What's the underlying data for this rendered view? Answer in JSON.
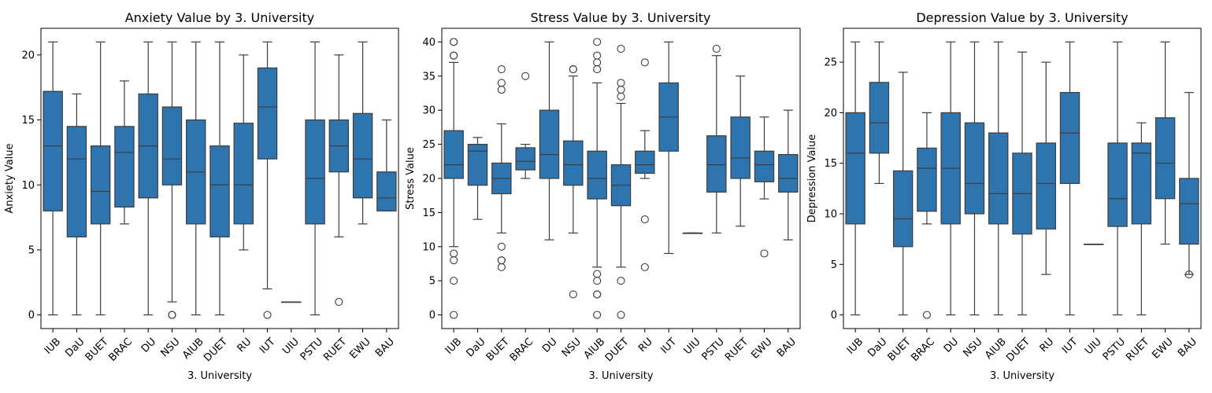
{
  "chart_data": [
    {
      "type": "box",
      "title": "Anxiety Value by 3. University",
      "xlabel": "3. University",
      "ylabel": "Anxiety Value",
      "ylim": [
        -1.05,
        22.05
      ],
      "yticks": [
        0,
        5,
        10,
        15,
        20
      ],
      "categories": [
        "IUB",
        "DaU",
        "BUET",
        "BRAC",
        "DU",
        "NSU",
        "AIUB",
        "DUET",
        "RU",
        "IUT",
        "UIU",
        "PSTU",
        "RUET",
        "EWU",
        "BAU"
      ],
      "boxes": [
        {
          "whisker_low": 0,
          "q1": 8,
          "median": 13,
          "q3": 17.2,
          "whisker_high": 21,
          "outliers": []
        },
        {
          "whisker_low": 0,
          "q1": 6,
          "median": 12,
          "q3": 14.5,
          "whisker_high": 17,
          "outliers": []
        },
        {
          "whisker_low": 0,
          "q1": 7,
          "median": 9.5,
          "q3": 13,
          "whisker_high": 21,
          "outliers": []
        },
        {
          "whisker_low": 7,
          "q1": 8.3,
          "median": 12.5,
          "q3": 14.5,
          "whisker_high": 18,
          "outliers": []
        },
        {
          "whisker_low": 0,
          "q1": 9,
          "median": 13,
          "q3": 17,
          "whisker_high": 21,
          "outliers": []
        },
        {
          "whisker_low": 1,
          "q1": 10,
          "median": 12,
          "q3": 16,
          "whisker_high": 21,
          "outliers": [
            0,
            0
          ]
        },
        {
          "whisker_low": 0,
          "q1": 7,
          "median": 11,
          "q3": 15,
          "whisker_high": 21,
          "outliers": []
        },
        {
          "whisker_low": 0,
          "q1": 6,
          "median": 10,
          "q3": 13,
          "whisker_high": 21,
          "outliers": []
        },
        {
          "whisker_low": 5,
          "q1": 7,
          "median": 10,
          "q3": 14.75,
          "whisker_high": 20,
          "outliers": []
        },
        {
          "whisker_low": 2,
          "q1": 12,
          "median": 16,
          "q3": 19,
          "whisker_high": 21,
          "outliers": [
            0
          ]
        },
        {
          "whisker_low": 1,
          "q1": 1,
          "median": 1,
          "q3": 1,
          "whisker_high": 1,
          "outliers": []
        },
        {
          "whisker_low": 0,
          "q1": 7,
          "median": 10.5,
          "q3": 15,
          "whisker_high": 21,
          "outliers": []
        },
        {
          "whisker_low": 6,
          "q1": 11,
          "median": 13,
          "q3": 15,
          "whisker_high": 20,
          "outliers": [
            1
          ]
        },
        {
          "whisker_low": 7,
          "q1": 9,
          "median": 12,
          "q3": 15.5,
          "whisker_high": 21,
          "outliers": []
        },
        {
          "whisker_low": 8,
          "q1": 8,
          "median": 9,
          "q3": 11,
          "whisker_high": 15,
          "outliers": []
        }
      ]
    },
    {
      "type": "box",
      "title": "Stress Value by 3. University",
      "xlabel": "3. University",
      "ylabel": "Stress Value",
      "ylim": [
        -2,
        42
      ],
      "yticks": [
        0,
        5,
        10,
        15,
        20,
        25,
        30,
        35,
        40
      ],
      "categories": [
        "IUB",
        "DaU",
        "BUET",
        "BRAC",
        "DU",
        "NSU",
        "AIUB",
        "DUET",
        "RU",
        "IUT",
        "UIU",
        "PSTU",
        "RUET",
        "EWU",
        "BAU"
      ],
      "boxes": [
        {
          "whisker_low": 10,
          "q1": 20,
          "median": 22,
          "q3": 27,
          "whisker_high": 37,
          "outliers": [
            38,
            38,
            40,
            40,
            9,
            8,
            5,
            0
          ]
        },
        {
          "whisker_low": 14,
          "q1": 19,
          "median": 24,
          "q3": 25,
          "whisker_high": 26,
          "outliers": []
        },
        {
          "whisker_low": 12,
          "q1": 17.75,
          "median": 20,
          "q3": 22.25,
          "whisker_high": 28,
          "outliers": [
            36,
            34,
            33,
            10,
            8,
            8,
            7
          ]
        },
        {
          "whisker_low": 20,
          "q1": 21.25,
          "median": 22.5,
          "q3": 24.5,
          "whisker_high": 25,
          "outliers": [
            35
          ]
        },
        {
          "whisker_low": 11,
          "q1": 20,
          "median": 23.5,
          "q3": 30,
          "whisker_high": 40,
          "outliers": []
        },
        {
          "whisker_low": 12,
          "q1": 19,
          "median": 22,
          "q3": 25.5,
          "whisker_high": 35,
          "outliers": [
            36,
            36,
            3
          ]
        },
        {
          "whisker_low": 7,
          "q1": 17,
          "median": 20,
          "q3": 24,
          "whisker_high": 34,
          "outliers": [
            40,
            38,
            37,
            36,
            6,
            5,
            3,
            3,
            0
          ]
        },
        {
          "whisker_low": 7,
          "q1": 16,
          "median": 19,
          "q3": 22,
          "whisker_high": 31,
          "outliers": [
            39,
            34,
            33,
            32,
            5,
            0
          ]
        },
        {
          "whisker_low": 20,
          "q1": 20.75,
          "median": 22,
          "q3": 24,
          "whisker_high": 27,
          "outliers": [
            37,
            14,
            7
          ]
        },
        {
          "whisker_low": 9,
          "q1": 24,
          "median": 29,
          "q3": 34,
          "whisker_high": 40,
          "outliers": []
        },
        {
          "whisker_low": 12,
          "q1": 12,
          "median": 12,
          "q3": 12,
          "whisker_high": 12,
          "outliers": []
        },
        {
          "whisker_low": 12,
          "q1": 18,
          "median": 22,
          "q3": 26.25,
          "whisker_high": 38,
          "outliers": [
            39
          ]
        },
        {
          "whisker_low": 13,
          "q1": 20,
          "median": 23,
          "q3": 29,
          "whisker_high": 35,
          "outliers": []
        },
        {
          "whisker_low": 17,
          "q1": 19.5,
          "median": 22,
          "q3": 24,
          "whisker_high": 29,
          "outliers": [
            9
          ]
        },
        {
          "whisker_low": 11,
          "q1": 18,
          "median": 20,
          "q3": 23.5,
          "whisker_high": 30,
          "outliers": []
        }
      ]
    },
    {
      "type": "box",
      "title": "Depression Value by 3. University",
      "xlabel": "3. University",
      "ylabel": "Depression Value",
      "ylim": [
        -1.35,
        28.35
      ],
      "yticks": [
        0,
        5,
        10,
        15,
        20,
        25
      ],
      "categories": [
        "IUB",
        "DaU",
        "BUET",
        "BRAC",
        "DU",
        "NSU",
        "AIUB",
        "DUET",
        "RU",
        "IUT",
        "UIU",
        "PSTU",
        "RUET",
        "EWU",
        "BAU"
      ],
      "boxes": [
        {
          "whisker_low": 0,
          "q1": 9,
          "median": 16,
          "q3": 20,
          "whisker_high": 27,
          "outliers": []
        },
        {
          "whisker_low": 13,
          "q1": 16,
          "median": 19,
          "q3": 23,
          "whisker_high": 27,
          "outliers": []
        },
        {
          "whisker_low": 0,
          "q1": 6.75,
          "median": 9.5,
          "q3": 14.25,
          "whisker_high": 24,
          "outliers": []
        },
        {
          "whisker_low": 9,
          "q1": 10.25,
          "median": 14.5,
          "q3": 16.5,
          "whisker_high": 20,
          "outliers": [
            0
          ]
        },
        {
          "whisker_low": 0,
          "q1": 9,
          "median": 14.5,
          "q3": 20,
          "whisker_high": 27,
          "outliers": []
        },
        {
          "whisker_low": 0,
          "q1": 10,
          "median": 13,
          "q3": 19,
          "whisker_high": 27,
          "outliers": []
        },
        {
          "whisker_low": 0,
          "q1": 9,
          "median": 12,
          "q3": 18,
          "whisker_high": 27,
          "outliers": []
        },
        {
          "whisker_low": 0,
          "q1": 8,
          "median": 12,
          "q3": 16,
          "whisker_high": 26,
          "outliers": []
        },
        {
          "whisker_low": 4,
          "q1": 8.5,
          "median": 13,
          "q3": 17,
          "whisker_high": 25,
          "outliers": []
        },
        {
          "whisker_low": 0,
          "q1": 13,
          "median": 18,
          "q3": 22,
          "whisker_high": 27,
          "outliers": []
        },
        {
          "whisker_low": 7,
          "q1": 7,
          "median": 7,
          "q3": 7,
          "whisker_high": 7,
          "outliers": []
        },
        {
          "whisker_low": 0,
          "q1": 8.75,
          "median": 11.5,
          "q3": 17,
          "whisker_high": 27,
          "outliers": []
        },
        {
          "whisker_low": 0,
          "q1": 9,
          "median": 16,
          "q3": 17,
          "whisker_high": 19,
          "outliers": []
        },
        {
          "whisker_low": 7,
          "q1": 11.5,
          "median": 15,
          "q3": 19.5,
          "whisker_high": 27,
          "outliers": []
        },
        {
          "whisker_low": 4,
          "q1": 7,
          "median": 11,
          "q3": 13.5,
          "whisker_high": 22,
          "outliers": [
            4
          ]
        }
      ]
    }
  ],
  "colors": {
    "box_fill": "#2e75b0",
    "line": "#3d3d3d",
    "axis": "#000000"
  }
}
